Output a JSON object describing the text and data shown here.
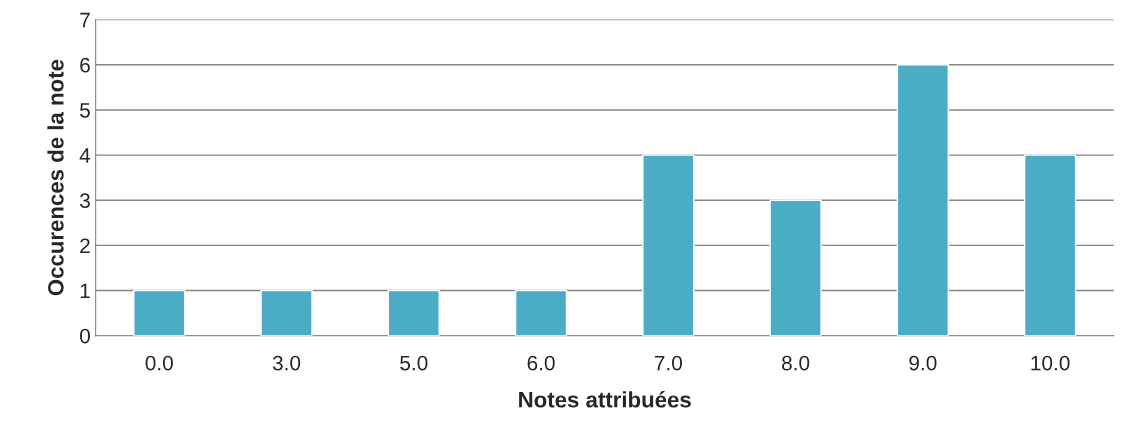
{
  "chart_data": {
    "type": "bar",
    "xlabel": "Notes attribuées",
    "ylabel": "Occurences de la note",
    "categories": [
      "0.0",
      "3.0",
      "5.0",
      "6.0",
      "7.0",
      "8.0",
      "9.0",
      "10.0"
    ],
    "values": [
      1,
      1,
      1,
      1,
      4,
      3,
      6,
      4
    ],
    "color": "#4bacc6",
    "ylim": [
      0,
      7
    ],
    "yticks": [
      0,
      1,
      2,
      3,
      4,
      5,
      6,
      7
    ],
    "grid": "y"
  }
}
